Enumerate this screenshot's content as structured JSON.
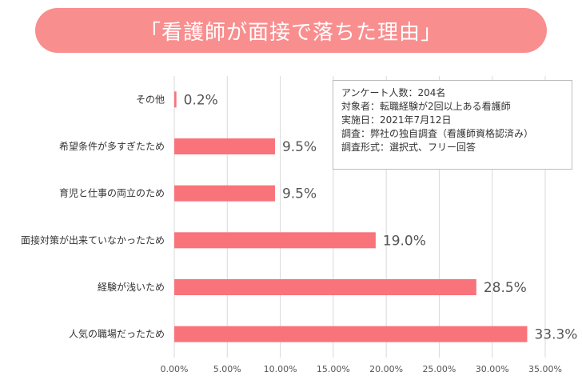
{
  "title": "「看護師が面接で落ちた理由」",
  "info_box": {
    "lines": [
      "アンケート人数：204名",
      "対象者：転職経験が2回以上ある看護師",
      "実施日：2021年7月12日",
      "調査：弊社の独自調査（看護師資格認済み）",
      "調査形式：選択式、フリー回答"
    ]
  },
  "chart_data": {
    "type": "bar",
    "orientation": "horizontal",
    "categories": [
      "その他",
      "希望条件が多すぎたため",
      "育児と仕事の両立のため",
      "面接対策が出来ていなかったため",
      "経験が浅いため",
      "人気の職場だったため"
    ],
    "values": [
      0.2,
      9.5,
      9.5,
      19.0,
      28.5,
      33.3
    ],
    "value_labels": [
      "0.2%",
      "9.5%",
      "9.5%",
      "19.0%",
      "28.5%",
      "33.3%"
    ],
    "x_ticks": [
      "0.00%",
      "5.00%",
      "10.00%",
      "15.00%",
      "20.00%",
      "25.00%",
      "30.00%",
      "35.00%"
    ],
    "xlim": [
      0,
      35
    ],
    "grid": true,
    "bar_color": "#f8737a",
    "title_color": "#f98e8f"
  }
}
